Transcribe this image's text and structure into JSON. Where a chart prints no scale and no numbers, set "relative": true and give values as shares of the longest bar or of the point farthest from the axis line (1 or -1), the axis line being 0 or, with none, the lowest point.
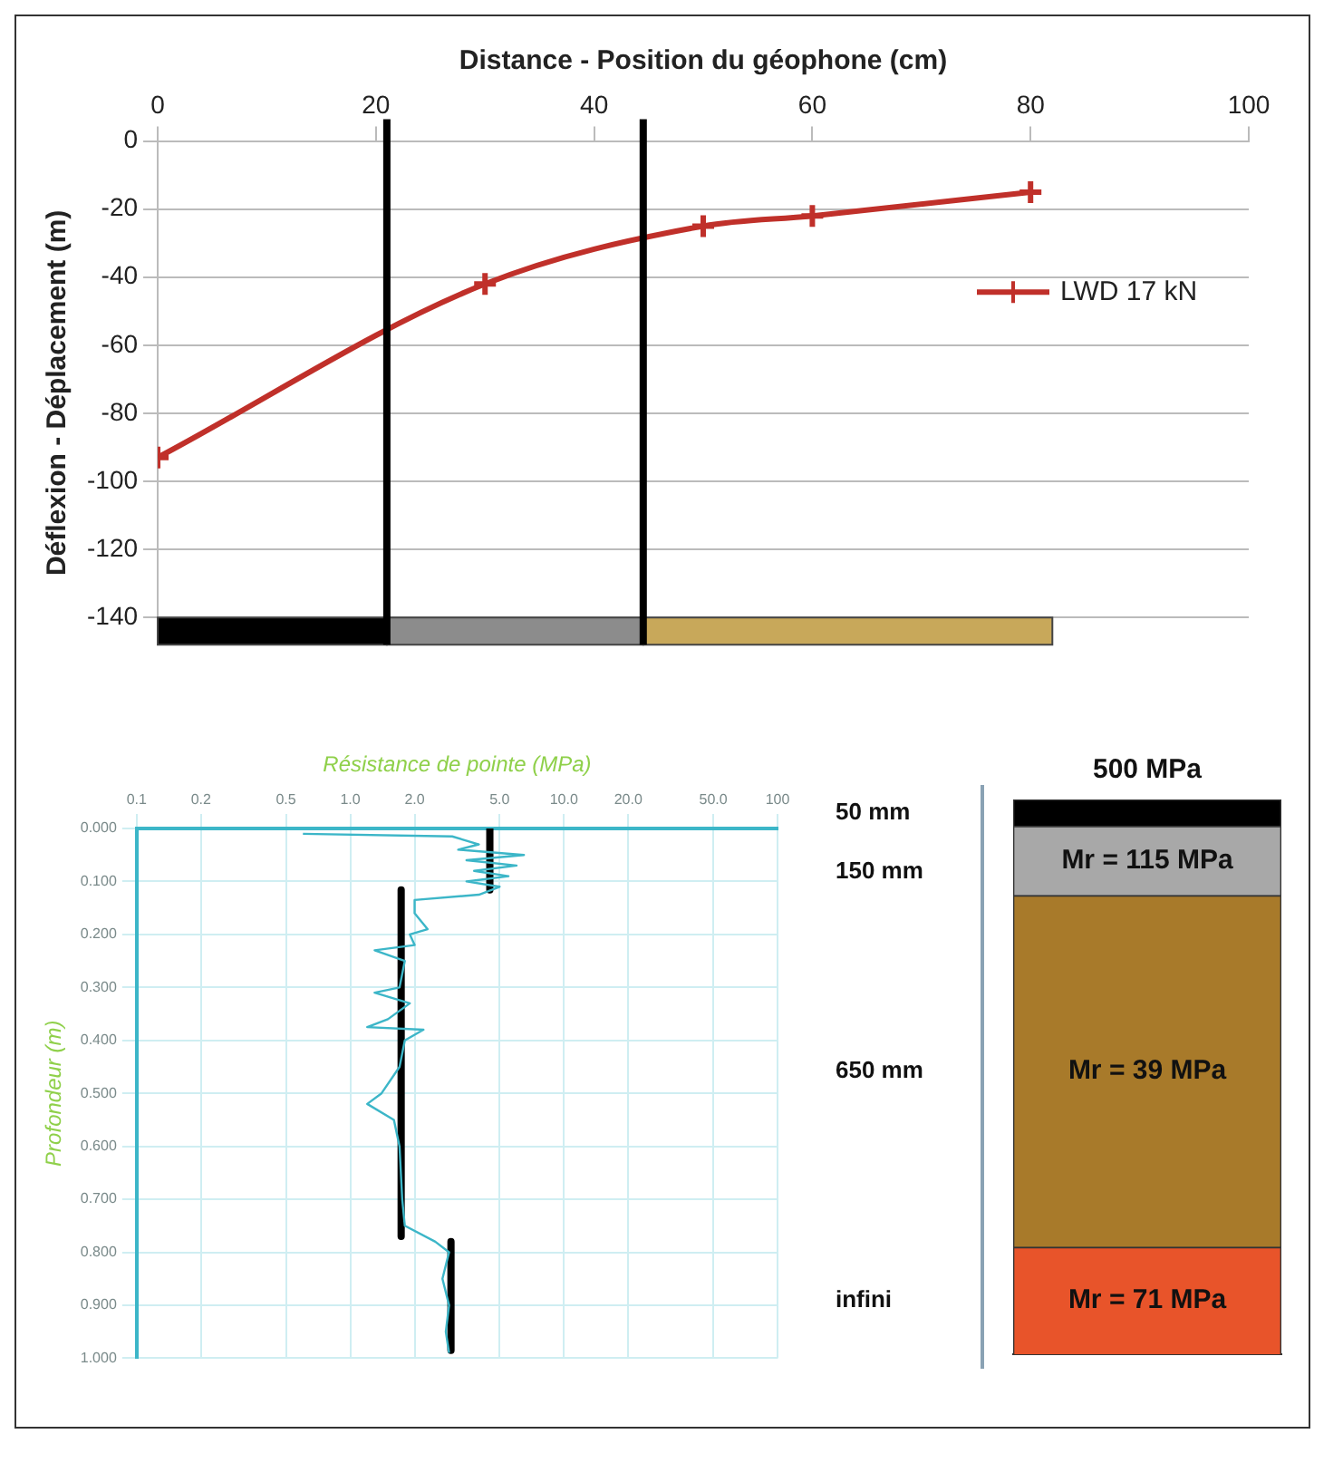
{
  "chart_data": [
    {
      "type": "line",
      "xlabel": "Distance - Position du géophone (cm)",
      "ylabel": "Déflexion - Déplacement (m)",
      "xlim": [
        0,
        100
      ],
      "xticks": [
        0,
        20,
        40,
        60,
        80,
        100
      ],
      "ylim": [
        -148,
        0
      ],
      "yticks": [
        0,
        -20,
        -40,
        -60,
        -80,
        -100,
        -120,
        -140
      ],
      "grid": "y",
      "legend": "right",
      "marker": "cross",
      "series": [
        {
          "name": "LWD 17 kN",
          "color": "#c0302a",
          "x": [
            0,
            30,
            50,
            60,
            80
          ],
          "values": [
            -93,
            -42,
            -25,
            -22,
            -15
          ]
        }
      ],
      "ref_lines": [
        {
          "axis": "x",
          "value": 21,
          "color": "#000000"
        },
        {
          "axis": "x",
          "value": 44.5,
          "color": "#000000"
        }
      ],
      "bands": [
        {
          "axis": "x",
          "from": 0,
          "to": 21,
          "color": "#000000"
        },
        {
          "axis": "x",
          "from": 21,
          "to": 44.5,
          "color": "#8c8c8c"
        },
        {
          "axis": "x",
          "from": 44.5,
          "to": 82,
          "color": "#c8a85a"
        }
      ]
    },
    {
      "type": "line",
      "xlabel": "Résistance de pointe (MPa)",
      "ylabel": "Profondeur (m)",
      "log": "x",
      "marker": "none",
      "grid": true,
      "xlim": [
        0.1,
        100
      ],
      "xticks": [
        {
          "value": 0.1,
          "label": "0.1"
        },
        {
          "value": 0.2,
          "label": "0.2"
        },
        {
          "value": 0.5,
          "label": "0.5"
        },
        {
          "value": 1,
          "label": "1.0"
        },
        {
          "value": 2,
          "label": "2.0"
        },
        {
          "value": 5,
          "label": "5.0"
        },
        {
          "value": 10,
          "label": "10.0"
        },
        {
          "value": 20,
          "label": "20.0"
        },
        {
          "value": 50,
          "label": "50.0"
        },
        {
          "value": 100,
          "label": "100"
        }
      ],
      "ylim": [
        1,
        0
      ],
      "yticks": [
        {
          "value": 0,
          "label": "0.000"
        },
        {
          "value": 0.1,
          "label": "0.100"
        },
        {
          "value": 0.2,
          "label": "0.200"
        },
        {
          "value": 0.3,
          "label": "0.300"
        },
        {
          "value": 0.4,
          "label": "0.400"
        },
        {
          "value": 0.5,
          "label": "0.500"
        },
        {
          "value": 0.6,
          "label": "0.600"
        },
        {
          "value": 0.7,
          "label": "0.700"
        },
        {
          "value": 0.8,
          "label": "0.800"
        },
        {
          "value": 0.9,
          "label": "0.900"
        },
        {
          "value": 1,
          "label": "1.000"
        }
      ],
      "series": [
        {
          "color": "#3cb6c8",
          "x": [
            0.6,
            3.0,
            4.0,
            3.2,
            6.5,
            3.5,
            6.0,
            3.8,
            5.5,
            3.5,
            5.0,
            4.0,
            2.0,
            2.0,
            2.3,
            1.9,
            2.0,
            1.3,
            1.8,
            1.7,
            1.3,
            1.9,
            1.5,
            1.2,
            2.2,
            1.8,
            1.7,
            1.4,
            1.2,
            1.6,
            1.7,
            1.75,
            1.8,
            2.5,
            2.9,
            2.7,
            2.9,
            2.8,
            2.9
          ],
          "values": [
            0.01,
            0.015,
            0.03,
            0.04,
            0.05,
            0.06,
            0.07,
            0.08,
            0.09,
            0.1,
            0.11,
            0.125,
            0.135,
            0.16,
            0.19,
            0.2,
            0.22,
            0.23,
            0.25,
            0.3,
            0.31,
            0.33,
            0.36,
            0.375,
            0.38,
            0.4,
            0.45,
            0.5,
            0.52,
            0.55,
            0.6,
            0.7,
            0.75,
            0.78,
            0.8,
            0.85,
            0.9,
            0.95,
            0.99
          ]
        },
        {
          "color": "#000000",
          "x": [
            4.5,
            4.5
          ],
          "values": [
            0,
            0.116
          ]
        },
        {
          "color": "#000000",
          "x": [
            1.73,
            1.73
          ],
          "values": [
            0.116,
            0.77
          ]
        },
        {
          "color": "#000000",
          "x": [
            2.96,
            2.96
          ],
          "values": [
            0.78,
            0.985
          ]
        }
      ]
    },
    {
      "type": "bar",
      "stacked": true,
      "relative": true,
      "categories": [
        null
      ],
      "series": [
        {
          "name": "Mr = 71 MPa",
          "color": "#e8542a",
          "values": [
            0.193
          ]
        },
        {
          "name": "Mr = 39 MPa",
          "color": "#a87a2a",
          "values": [
            0.634
          ]
        },
        {
          "name": "Mr = 115 MPa",
          "color": "#a8a8a8",
          "values": [
            0.125
          ]
        },
        {
          "name": "500 MPa",
          "color": "#000000",
          "values": [
            0.048
          ]
        }
      ],
      "annotations": [
        "50 mm",
        "150 mm",
        "650 mm",
        "infini"
      ]
    }
  ]
}
